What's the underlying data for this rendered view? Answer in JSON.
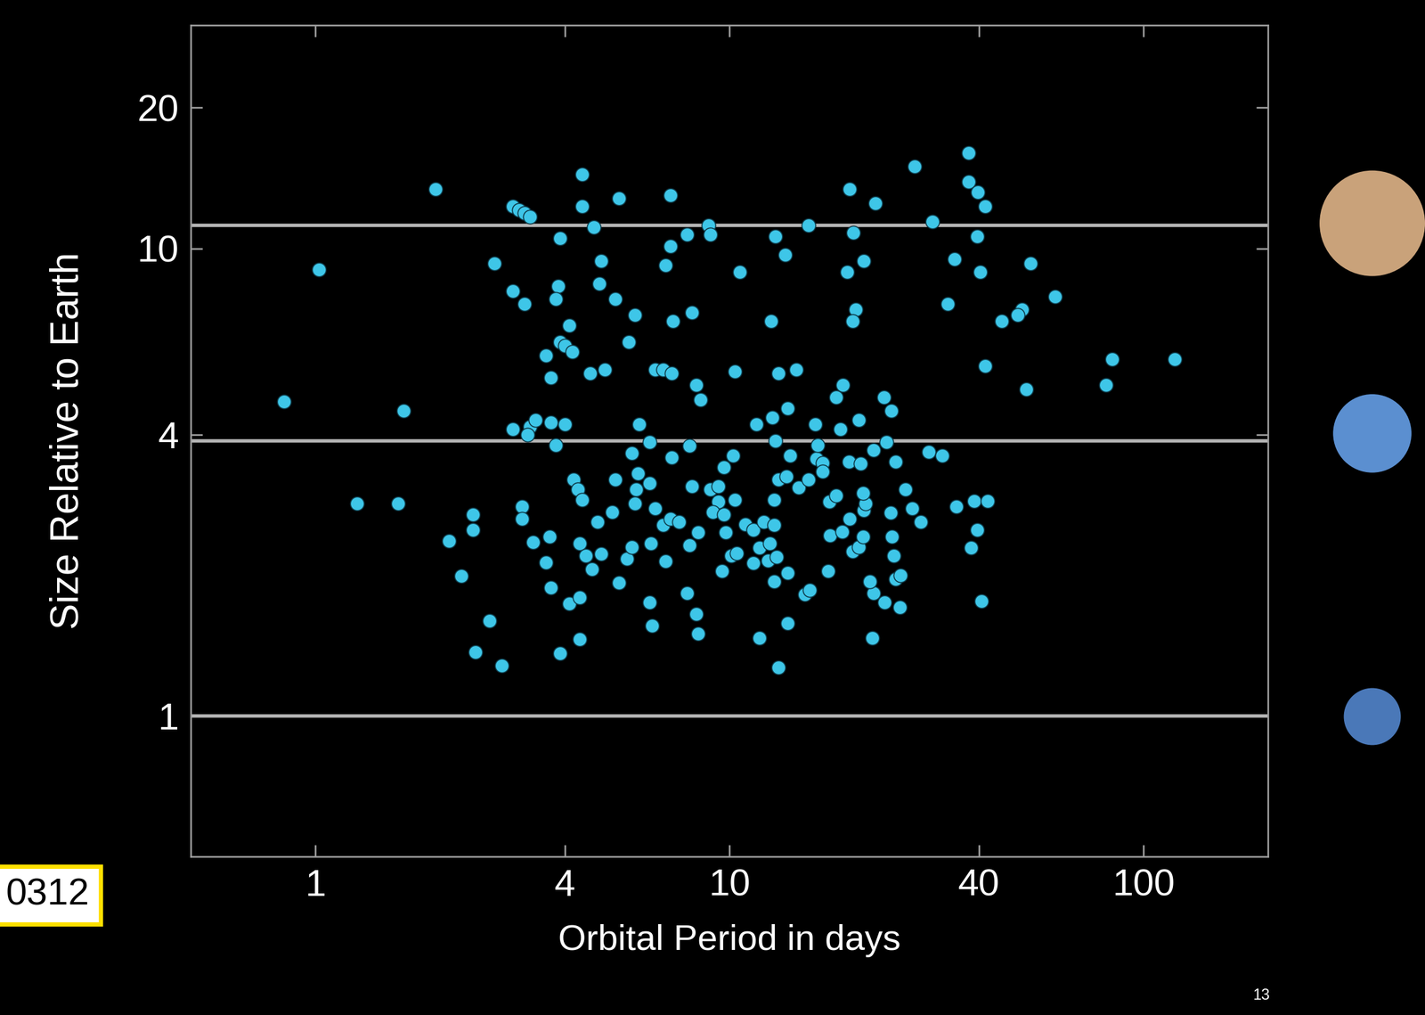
{
  "chart_data": {
    "type": "scatter",
    "x_label": "Orbital Period in days",
    "y_label": "Size Relative to Earth",
    "log": true,
    "xlim": [
      0.5,
      200
    ],
    "ylim": [
      0.5,
      30
    ],
    "xticks": [
      1,
      4,
      10,
      40,
      100
    ],
    "yticks": [
      1,
      4,
      10,
      20
    ],
    "reference_lines": [
      1,
      3.88,
      11.2
    ],
    "color": "#3ec6e8",
    "marker": "o",
    "grid": false,
    "annotations": [
      "0312",
      "13"
    ],
    "x": [
      1.95,
      4.4,
      3.0,
      3.1,
      3.2,
      3.3,
      4.4,
      5.4,
      7.2,
      4.7,
      3.9,
      8.9,
      7.9,
      7.2,
      4.9,
      7.0,
      2.7,
      1.02,
      3.0,
      3.2,
      3.85,
      3.8,
      4.85,
      5.3,
      5.9,
      4.1,
      7.3,
      8.1,
      3.9,
      4.0,
      4.17,
      3.6,
      3.7,
      4.6,
      5.0,
      5.7,
      6.6,
      6.9,
      7.25,
      8.3,
      8.5,
      10.3,
      10.6,
      9.0,
      12.9,
      13.6,
      15.5,
      19.5,
      22.5,
      19.9,
      21.1,
      19.2,
      20.2,
      19.8,
      12.6,
      13.1,
      14.5,
      28.0,
      37.8,
      37.8,
      39.8,
      41.4,
      30.9,
      39.6,
      34.9,
      40.3,
      33.7,
      53.4,
      61.2,
      50.8,
      49.6,
      45.4,
      41.4,
      52.0,
      84,
      81,
      119,
      18.1,
      18.8,
      23.6,
      24.6,
      20.5,
      18.5,
      16.1,
      13.8,
      12.7,
      11.6,
      23.9,
      0.84,
      1.63,
      3.0,
      3.3,
      3.4,
      3.7,
      4.0,
      3.25,
      3.8,
      1.26,
      1.58,
      2.1,
      2.25,
      2.4,
      2.4,
      2.63,
      2.43,
      2.82,
      3.15,
      3.15,
      3.35,
      3.6,
      3.67,
      3.7,
      3.9,
      4.1,
      4.35,
      4.35,
      4.2,
      4.3,
      4.4,
      4.35,
      4.5,
      4.65,
      4.9,
      4.8,
      5.2,
      5.3,
      5.4,
      5.65,
      5.8,
      5.9,
      5.95,
      6.0,
      5.8,
      6.05,
      6.4,
      6.4,
      6.6,
      6.4,
      6.5,
      6.45,
      6.9,
      7.2,
      7.25,
      7.0,
      7.55,
      8.0,
      8.1,
      8.0,
      8.4,
      7.9,
      8.3,
      8.4,
      9.0,
      9.4,
      9.4,
      9.7,
      10.2,
      9.1,
      9.7,
      9.8,
      9.6,
      10.1,
      10.4,
      10.3,
      10.9,
      11.4,
      12.1,
      12.8,
      11.8,
      12.5,
      12.4,
      13.0,
      11.4,
      11.8,
      13.1,
      12.8,
      13.8,
      13.8,
      15.2,
      15.6,
      17.3,
      13.1,
      12.8,
      13.7,
      14.0,
      12.9,
      14.7,
      15.5,
      16.2,
      16.3,
      16.8,
      16.8,
      17.4,
      18.1,
      17.5,
      18.7,
      19.5,
      19.8,
      20.5,
      21.0,
      21.1,
      21.3,
      21.0,
      19.4,
      20.7,
      22.3,
      25.2,
      26.6,
      27.6,
      29.0,
      30.3,
      32.6,
      24.5,
      24.7,
      24.9,
      25.2,
      25.9,
      22.3,
      22.1,
      23.7,
      25.8,
      21.8,
      35.3,
      38.9,
      42.0,
      39.6,
      38.3,
      40.6
    ],
    "values": [
      13.4,
      14.4,
      12.3,
      12.1,
      11.9,
      11.7,
      12.3,
      12.8,
      13.0,
      11.1,
      10.5,
      11.2,
      10.7,
      10.1,
      9.4,
      9.2,
      9.3,
      9.0,
      8.1,
      7.6,
      8.3,
      7.8,
      8.4,
      7.8,
      7.2,
      6.85,
      7.0,
      7.3,
      6.3,
      6.2,
      6.0,
      5.9,
      5.3,
      5.4,
      5.5,
      6.3,
      5.5,
      5.5,
      5.4,
      5.1,
      4.75,
      5.45,
      8.9,
      10.7,
      10.6,
      9.7,
      11.2,
      13.4,
      12.5,
      10.8,
      9.4,
      8.9,
      7.4,
      7.0,
      7.0,
      5.4,
      5.5,
      15.0,
      16.0,
      13.9,
      13.2,
      12.3,
      11.4,
      10.6,
      9.5,
      8.9,
      7.6,
      9.3,
      7.9,
      7.4,
      7.2,
      7.0,
      5.6,
      5.0,
      5.8,
      5.1,
      5.8,
      4.8,
      5.1,
      4.8,
      4.5,
      4.3,
      4.1,
      4.2,
      4.55,
      4.35,
      4.2,
      3.85,
      4.7,
      4.5,
      4.1,
      4.15,
      4.3,
      4.25,
      4.2,
      4.0,
      3.8,
      2.85,
      2.85,
      2.37,
      1.99,
      2.7,
      2.5,
      1.6,
      1.37,
      1.28,
      2.8,
      2.64,
      2.35,
      2.13,
      2.42,
      1.88,
      1.36,
      1.74,
      1.79,
      1.46,
      3.2,
      3.05,
      2.9,
      2.34,
      2.2,
      2.06,
      2.22,
      2.6,
      2.73,
      3.2,
      1.93,
      2.17,
      2.3,
      2.85,
      3.05,
      3.3,
      3.65,
      4.2,
      3.85,
      3.15,
      2.78,
      1.75,
      1.56,
      2.34,
      2.56,
      2.64,
      3.57,
      2.14,
      2.6,
      3.78,
      3.1,
      2.32,
      2.47,
      1.83,
      1.65,
      1.5,
      3.05,
      3.1,
      2.87,
      3.4,
      3.6,
      2.73,
      2.7,
      2.47,
      2.04,
      2.2,
      2.23,
      2.9,
      2.57,
      2.5,
      2.6,
      2.56,
      2.29,
      2.34,
      2.15,
      2.19,
      2.12,
      1.47,
      1.27,
      1.94,
      2.02,
      1.58,
      1.82,
      1.86,
      2.04,
      3.2,
      2.9,
      3.25,
      3.6,
      3.87,
      3.08,
      3.2,
      3.55,
      3.8,
      3.48,
      3.33,
      2.87,
      2.96,
      2.43,
      2.48,
      2.64,
      2.25,
      2.3,
      2.42,
      2.75,
      2.85,
      3.0,
      3.5,
      3.47,
      3.7,
      3.5,
      3.05,
      2.78,
      2.6,
      3.67,
      3.6,
      2.72,
      2.42,
      2.2,
      1.96,
      2.0,
      1.83,
      1.47,
      1.75,
      1.71,
      1.94,
      2.8,
      2.88,
      2.88,
      2.5,
      2.29,
      1.76
    ]
  }
}
